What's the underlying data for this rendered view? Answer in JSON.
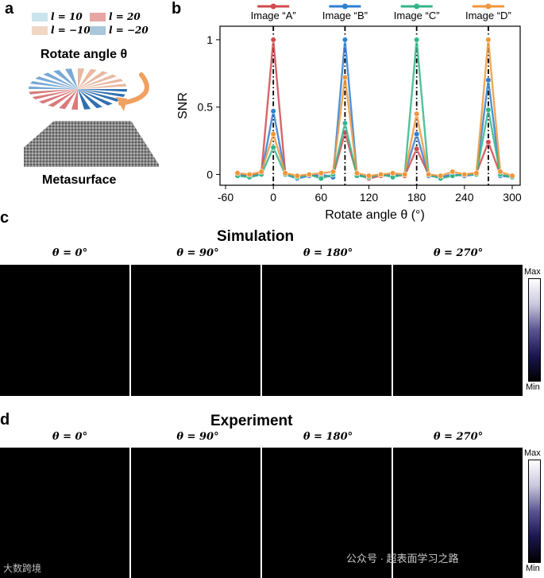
{
  "panel_a": {
    "label": "a",
    "legend": [
      {
        "text": "l = 10",
        "color": "#c9e4ec"
      },
      {
        "text": "l = 20",
        "color": "#e7a6a4"
      },
      {
        "text": "l = −10",
        "color": "#f1d6c4"
      },
      {
        "text": "l = −20",
        "color": "#a9c6da"
      }
    ],
    "rotate_label": "Rotate angle θ",
    "metasurface_label": "Metasurface"
  },
  "panel_b": {
    "label": "b"
  },
  "panel_c": {
    "label": "c",
    "title": "Simulation",
    "angles": [
      "θ = 0°",
      "θ = 90°",
      "θ = 180°",
      "θ = 270°"
    ],
    "colorbar": {
      "max": "Max",
      "min": "Min"
    }
  },
  "panel_d": {
    "label": "d",
    "title": "Experiment",
    "angles": [
      "θ = 0°",
      "θ = 90°",
      "θ = 180°",
      "θ = 270°"
    ],
    "colorbar": {
      "max": "Max",
      "min": "Min"
    }
  },
  "watermark": {
    "left": "大数跨境",
    "right": "公众号 · 超表面学习之路"
  },
  "chart_data": {
    "type": "line",
    "xlabel": "Rotate angle θ (°)",
    "ylabel": "SNR",
    "xlim": [
      -67,
      310
    ],
    "ylim": [
      -0.08,
      1.1
    ],
    "xticks": [
      "-60",
      "0",
      "60",
      "120",
      "180",
      "240",
      "300"
    ],
    "xtick_values": [
      -60,
      0,
      60,
      120,
      180,
      240,
      300
    ],
    "yticks": [
      "0",
      "0.5",
      "1"
    ],
    "ytick_values": [
      0,
      0.5,
      1
    ],
    "x": [
      -45,
      -30,
      -15,
      0,
      15,
      30,
      45,
      60,
      75,
      90,
      105,
      120,
      135,
      150,
      165,
      180,
      195,
      210,
      225,
      240,
      255,
      270,
      285,
      300
    ],
    "peaks": [
      {
        "label": "Image “A”",
        "x": 0,
        "color": "#d04a4e"
      },
      {
        "label": "Image “B”",
        "x": 90,
        "color": "#2f7fd0"
      },
      {
        "label": "Image “C”",
        "x": 180,
        "color": "#33b58a"
      },
      {
        "label": "Image “D”",
        "x": 270,
        "color": "#f0963a"
      }
    ],
    "series": [
      {
        "color": "#d04a4e",
        "values": [
          0.0,
          -0.01,
          0.01,
          1.0,
          0.01,
          -0.02,
          0.0,
          -0.02,
          -0.01,
          0.31,
          0.0,
          -0.03,
          -0.01,
          0.0,
          -0.01,
          0.19,
          0.0,
          -0.02,
          -0.01,
          0.0,
          0.01,
          0.24,
          0.0,
          -0.02
        ]
      },
      {
        "color": "#2f7fd0",
        "values": [
          0.0,
          -0.02,
          0.0,
          0.47,
          0.0,
          -0.03,
          -0.01,
          0.0,
          -0.02,
          1.0,
          0.0,
          -0.02,
          0.0,
          -0.01,
          0.0,
          0.3,
          -0.01,
          -0.02,
          0.0,
          -0.01,
          0.0,
          0.7,
          -0.01,
          -0.02
        ]
      },
      {
        "color": "#33b58a",
        "values": [
          -0.01,
          -0.02,
          0.0,
          0.2,
          0.0,
          -0.02,
          0.0,
          -0.03,
          0.0,
          0.38,
          -0.01,
          -0.02,
          0.0,
          -0.02,
          0.0,
          1.0,
          0.0,
          -0.03,
          -0.01,
          0.0,
          0.0,
          0.48,
          0.0,
          -0.02
        ]
      },
      {
        "color": "#f0963a",
        "values": [
          0.01,
          0.0,
          0.02,
          0.3,
          0.01,
          -0.01,
          0.0,
          0.01,
          0.02,
          0.72,
          0.01,
          -0.01,
          0.0,
          0.01,
          0.0,
          0.45,
          0.0,
          -0.01,
          0.02,
          0.0,
          0.01,
          1.0,
          0.02,
          -0.01
        ]
      }
    ]
  }
}
